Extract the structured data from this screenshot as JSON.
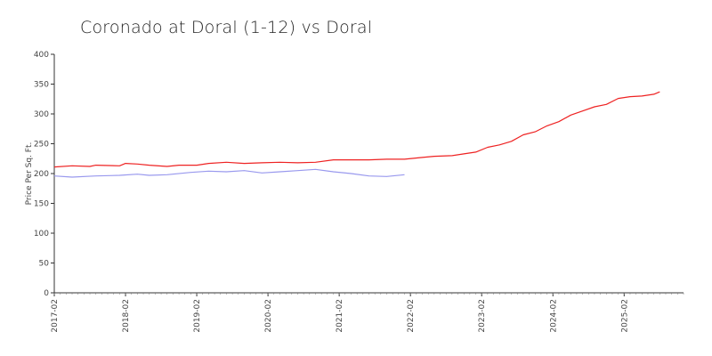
{
  "chart_data": {
    "type": "line",
    "title": "Coronado at Doral (1-12) vs Doral",
    "xlabel": "",
    "ylabel": "Price Per Sq. Ft.",
    "ylim": [
      0,
      400
    ],
    "yticks": [
      0,
      50,
      100,
      150,
      200,
      250,
      300,
      350,
      400
    ],
    "xlim": [
      "2017-02",
      "2025-12"
    ],
    "xticks": [
      "2017-02",
      "2018-02",
      "2019-02",
      "2020-02",
      "2021-02",
      "2022-02",
      "2023-02",
      "2024-02",
      "2025-02"
    ],
    "grid": false,
    "colors": {
      "red_series": "#ee2222",
      "blue_series": "#9999ee"
    },
    "series": [
      {
        "color": "#ee2222",
        "points": [
          [
            "2017-02",
            211
          ],
          [
            "2017-05",
            213
          ],
          [
            "2017-08",
            212
          ],
          [
            "2017-09",
            214
          ],
          [
            "2018-01",
            213
          ],
          [
            "2018-02",
            217
          ],
          [
            "2018-04",
            216
          ],
          [
            "2018-06",
            214
          ],
          [
            "2018-09",
            212
          ],
          [
            "2018-11",
            214
          ],
          [
            "2019-02",
            214
          ],
          [
            "2019-04",
            217
          ],
          [
            "2019-07",
            219
          ],
          [
            "2019-10",
            217
          ],
          [
            "2020-01",
            218
          ],
          [
            "2020-04",
            219
          ],
          [
            "2020-07",
            218
          ],
          [
            "2020-10",
            219
          ],
          [
            "2021-01",
            223
          ],
          [
            "2021-04",
            223
          ],
          [
            "2021-07",
            223
          ],
          [
            "2021-10",
            224
          ],
          [
            "2022-01",
            224
          ],
          [
            "2022-04",
            227
          ],
          [
            "2022-06",
            229
          ],
          [
            "2022-09",
            230
          ],
          [
            "2022-11",
            233
          ],
          [
            "2023-01",
            236
          ],
          [
            "2023-03",
            244
          ],
          [
            "2023-05",
            248
          ],
          [
            "2023-07",
            254
          ],
          [
            "2023-09",
            265
          ],
          [
            "2023-11",
            270
          ],
          [
            "2024-01",
            280
          ],
          [
            "2024-03",
            287
          ],
          [
            "2024-05",
            298
          ],
          [
            "2024-07",
            305
          ],
          [
            "2024-09",
            312
          ],
          [
            "2024-11",
            316
          ],
          [
            "2025-01",
            326
          ],
          [
            "2025-03",
            329
          ],
          [
            "2025-05",
            330
          ],
          [
            "2025-07",
            333
          ],
          [
            "2025-08",
            337
          ]
        ]
      },
      {
        "color": "#9999ee",
        "points": [
          [
            "2017-02",
            196
          ],
          [
            "2017-05",
            194
          ],
          [
            "2017-09",
            196
          ],
          [
            "2018-01",
            197
          ],
          [
            "2018-04",
            199
          ],
          [
            "2018-06",
            197
          ],
          [
            "2018-09",
            198
          ],
          [
            "2019-01",
            202
          ],
          [
            "2019-04",
            204
          ],
          [
            "2019-07",
            203
          ],
          [
            "2019-10",
            205
          ],
          [
            "2020-01",
            201
          ],
          [
            "2020-04",
            203
          ],
          [
            "2020-07",
            205
          ],
          [
            "2020-10",
            207
          ],
          [
            "2021-01",
            203
          ],
          [
            "2021-04",
            200
          ],
          [
            "2021-07",
            196
          ],
          [
            "2021-10",
            195
          ],
          [
            "2022-01",
            198
          ]
        ]
      }
    ]
  }
}
